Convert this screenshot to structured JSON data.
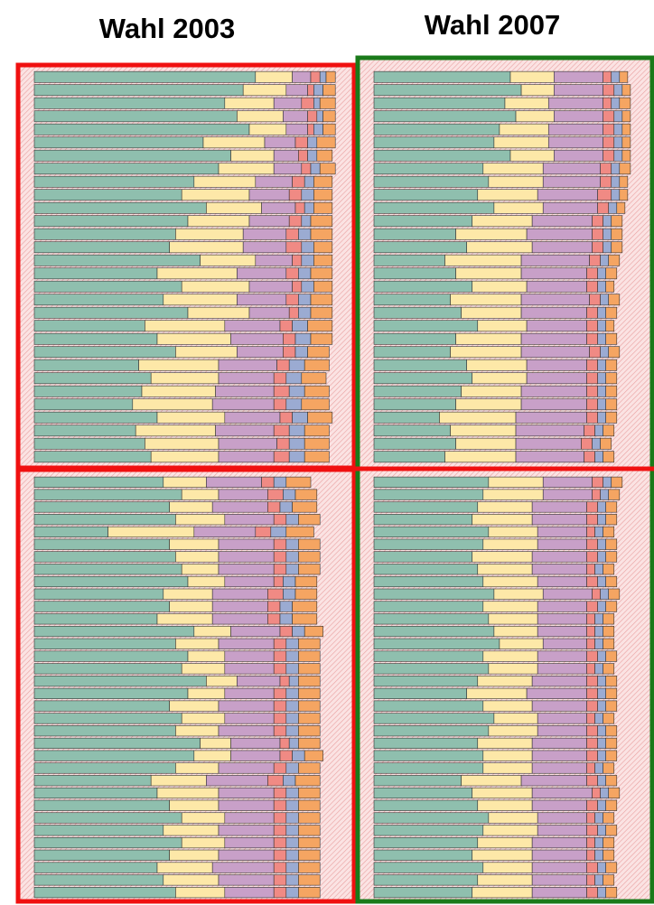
{
  "chart_data": [
    {
      "type": "bar",
      "orientation": "horizontal",
      "stacked": true,
      "title": "Wahl 2003",
      "xlim": [
        0,
        100
      ],
      "categories": [
        null,
        null,
        null,
        null,
        null,
        null,
        null,
        null,
        null,
        null,
        null,
        null,
        null,
        null,
        null,
        null,
        null,
        null,
        null,
        null,
        null,
        null,
        null,
        null,
        null,
        null,
        null,
        null,
        null,
        null,
        null,
        null,
        null,
        null,
        null,
        null,
        null,
        null,
        null,
        null,
        null,
        null,
        null,
        null,
        null,
        null,
        null,
        null,
        null,
        null,
        null,
        null,
        null,
        null,
        null,
        null,
        null,
        null,
        null,
        null,
        null,
        null,
        null,
        null
      ],
      "series": [
        {
          "color": "#8fbfae",
          "values": [
            72,
            68,
            62,
            66,
            70,
            55,
            64,
            60,
            52,
            48,
            56,
            50,
            46,
            44,
            54,
            40,
            48,
            42,
            50,
            36,
            40,
            46,
            34,
            38,
            35,
            32,
            40,
            33,
            36,
            38,
            42,
            48,
            44,
            46,
            24,
            44,
            46,
            48,
            50,
            42,
            44,
            40,
            52,
            46,
            50,
            48,
            56,
            50,
            44,
            48,
            46,
            54,
            52,
            46,
            38,
            40,
            44,
            48,
            42,
            48,
            44,
            40,
            42,
            46
          ]
        },
        {
          "color": "#fde8a8",
          "values": [
            12,
            14,
            16,
            15,
            12,
            20,
            14,
            18,
            20,
            22,
            18,
            20,
            22,
            24,
            18,
            26,
            22,
            24,
            20,
            26,
            24,
            20,
            26,
            22,
            24,
            26,
            22,
            26,
            24,
            22,
            14,
            12,
            14,
            16,
            28,
            16,
            14,
            12,
            12,
            16,
            14,
            18,
            12,
            14,
            12,
            14,
            10,
            12,
            16,
            14,
            14,
            10,
            12,
            14,
            18,
            20,
            16,
            14,
            18,
            14,
            16,
            18,
            18,
            16
          ]
        },
        {
          "color": "#c8a0c8",
          "values": [
            6,
            7,
            9,
            8,
            7,
            10,
            8,
            9,
            12,
            13,
            11,
            13,
            14,
            14,
            12,
            16,
            14,
            16,
            13,
            18,
            17,
            15,
            19,
            18,
            19,
            20,
            18,
            19,
            19,
            18,
            18,
            16,
            18,
            16,
            20,
            18,
            18,
            18,
            16,
            18,
            18,
            18,
            16,
            18,
            16,
            16,
            14,
            16,
            18,
            16,
            18,
            16,
            16,
            18,
            20,
            18,
            18,
            16,
            18,
            16,
            18,
            20,
            18,
            16
          ]
        },
        {
          "color": "#f08a84",
          "values": [
            3,
            2,
            4,
            3,
            2,
            4,
            3,
            3,
            4,
            4,
            3,
            4,
            4,
            5,
            3,
            4,
            3,
            4,
            3,
            4,
            4,
            4,
            4,
            4,
            5,
            4,
            4,
            5,
            4,
            5,
            4,
            5,
            4,
            4,
            5,
            4,
            4,
            4,
            3,
            5,
            4,
            4,
            4,
            4,
            4,
            4,
            3,
            4,
            4,
            4,
            4,
            3,
            4,
            4,
            5,
            4,
            4,
            4,
            4,
            4,
            4,
            4,
            4,
            4
          ]
        },
        {
          "color": "#9babd2",
          "values": [
            2,
            3,
            2,
            2,
            3,
            3,
            3,
            3,
            3,
            4,
            3,
            3,
            4,
            4,
            4,
            4,
            4,
            4,
            4,
            5,
            5,
            4,
            5,
            5,
            5,
            5,
            5,
            5,
            5,
            5,
            4,
            4,
            4,
            4,
            5,
            4,
            4,
            4,
            4,
            4,
            4,
            4,
            4,
            4,
            4,
            4,
            3,
            4,
            4,
            4,
            4,
            3,
            4,
            4,
            4,
            4,
            4,
            4,
            4,
            4,
            4,
            4,
            4,
            4
          ]
        },
        {
          "color": "#f5a562",
          "values": [
            3,
            4,
            5,
            4,
            4,
            6,
            5,
            5,
            6,
            6,
            6,
            7,
            7,
            6,
            6,
            7,
            6,
            7,
            7,
            8,
            7,
            7,
            8,
            8,
            8,
            9,
            8,
            8,
            8,
            8,
            8,
            7,
            8,
            7,
            9,
            7,
            7,
            7,
            7,
            7,
            8,
            8,
            6,
            7,
            7,
            7,
            7,
            7,
            7,
            7,
            7,
            7,
            6,
            7,
            8,
            7,
            7,
            7,
            7,
            7,
            7,
            7,
            7,
            7
          ]
        }
      ]
    },
    {
      "type": "bar",
      "orientation": "horizontal",
      "stacked": true,
      "title": "Wahl 2007",
      "xlim": [
        0,
        100
      ],
      "categories": [
        null,
        null,
        null,
        null,
        null,
        null,
        null,
        null,
        null,
        null,
        null,
        null,
        null,
        null,
        null,
        null,
        null,
        null,
        null,
        null,
        null,
        null,
        null,
        null,
        null,
        null,
        null,
        null,
        null,
        null,
        null,
        null,
        null,
        null,
        null,
        null,
        null,
        null,
        null,
        null,
        null,
        null,
        null,
        null,
        null,
        null,
        null,
        null,
        null,
        null,
        null,
        null,
        null,
        null,
        null,
        null,
        null,
        null,
        null,
        null,
        null,
        null,
        null,
        null
      ],
      "series": [
        {
          "color": "#8fbfae",
          "values": [
            50,
            54,
            48,
            52,
            46,
            44,
            50,
            40,
            42,
            38,
            44,
            36,
            30,
            34,
            26,
            30,
            36,
            28,
            32,
            38,
            30,
            28,
            34,
            36,
            32,
            30,
            24,
            28,
            30,
            26,
            42,
            40,
            38,
            36,
            42,
            40,
            36,
            38,
            40,
            44,
            40,
            42,
            44,
            46,
            40,
            42,
            38,
            34,
            40,
            44,
            42,
            38,
            40,
            40,
            32,
            36,
            38,
            42,
            40,
            38,
            36,
            40,
            38,
            36
          ]
        },
        {
          "color": "#fde8a8",
          "values": [
            16,
            12,
            16,
            14,
            18,
            20,
            16,
            22,
            20,
            22,
            18,
            22,
            26,
            24,
            28,
            24,
            20,
            26,
            22,
            18,
            24,
            26,
            22,
            20,
            22,
            24,
            28,
            24,
            22,
            26,
            20,
            22,
            20,
            22,
            18,
            20,
            22,
            20,
            20,
            18,
            20,
            18,
            16,
            16,
            20,
            18,
            20,
            22,
            18,
            16,
            18,
            20,
            18,
            18,
            22,
            22,
            20,
            18,
            20,
            20,
            22,
            18,
            20,
            22
          ]
        },
        {
          "color": "#c8a0c8",
          "values": [
            18,
            18,
            20,
            18,
            20,
            20,
            18,
            21,
            21,
            22,
            20,
            22,
            24,
            22,
            25,
            24,
            22,
            25,
            24,
            22,
            24,
            25,
            22,
            22,
            24,
            24,
            26,
            25,
            24,
            25,
            18,
            18,
            20,
            20,
            18,
            18,
            20,
            20,
            18,
            18,
            18,
            18,
            18,
            16,
            18,
            18,
            20,
            22,
            20,
            18,
            18,
            20,
            20,
            20,
            24,
            22,
            20,
            18,
            18,
            20,
            20,
            20,
            20,
            20
          ]
        },
        {
          "color": "#f08a84",
          "values": [
            3,
            4,
            3,
            4,
            4,
            4,
            4,
            4,
            4,
            5,
            4,
            4,
            4,
            4,
            4,
            4,
            4,
            4,
            4,
            4,
            4,
            4,
            4,
            4,
            4,
            4,
            4,
            4,
            4,
            4,
            4,
            3,
            4,
            4,
            3,
            4,
            4,
            3,
            4,
            3,
            4,
            3,
            3,
            3,
            4,
            3,
            4,
            4,
            4,
            3,
            4,
            4,
            4,
            3,
            4,
            3,
            4,
            3,
            4,
            3,
            3,
            4,
            3,
            4
          ]
        },
        {
          "color": "#9babd2",
          "values": [
            3,
            3,
            3,
            3,
            3,
            3,
            3,
            3,
            3,
            3,
            3,
            3,
            3,
            3,
            3,
            3,
            3,
            3,
            3,
            3,
            3,
            3,
            3,
            3,
            3,
            3,
            3,
            3,
            3,
            3,
            3,
            3,
            3,
            3,
            3,
            3,
            3,
            3,
            3,
            3,
            3,
            3,
            3,
            3,
            3,
            3,
            3,
            3,
            3,
            3,
            3,
            3,
            3,
            3,
            3,
            3,
            3,
            3,
            3,
            3,
            3,
            3,
            3,
            3
          ]
        },
        {
          "color": "#f5a562",
          "values": [
            3,
            3,
            4,
            3,
            3,
            3,
            3,
            4,
            3,
            3,
            3,
            4,
            4,
            4,
            4,
            4,
            3,
            4,
            4,
            3,
            4,
            4,
            4,
            4,
            4,
            4,
            4,
            4,
            4,
            4,
            4,
            4,
            4,
            4,
            4,
            4,
            4,
            4,
            4,
            4,
            4,
            4,
            4,
            4,
            4,
            4,
            4,
            4,
            4,
            4,
            4,
            4,
            4,
            4,
            4,
            4,
            4,
            4,
            4,
            4,
            4,
            4,
            4,
            4
          ]
        }
      ]
    }
  ]
}
